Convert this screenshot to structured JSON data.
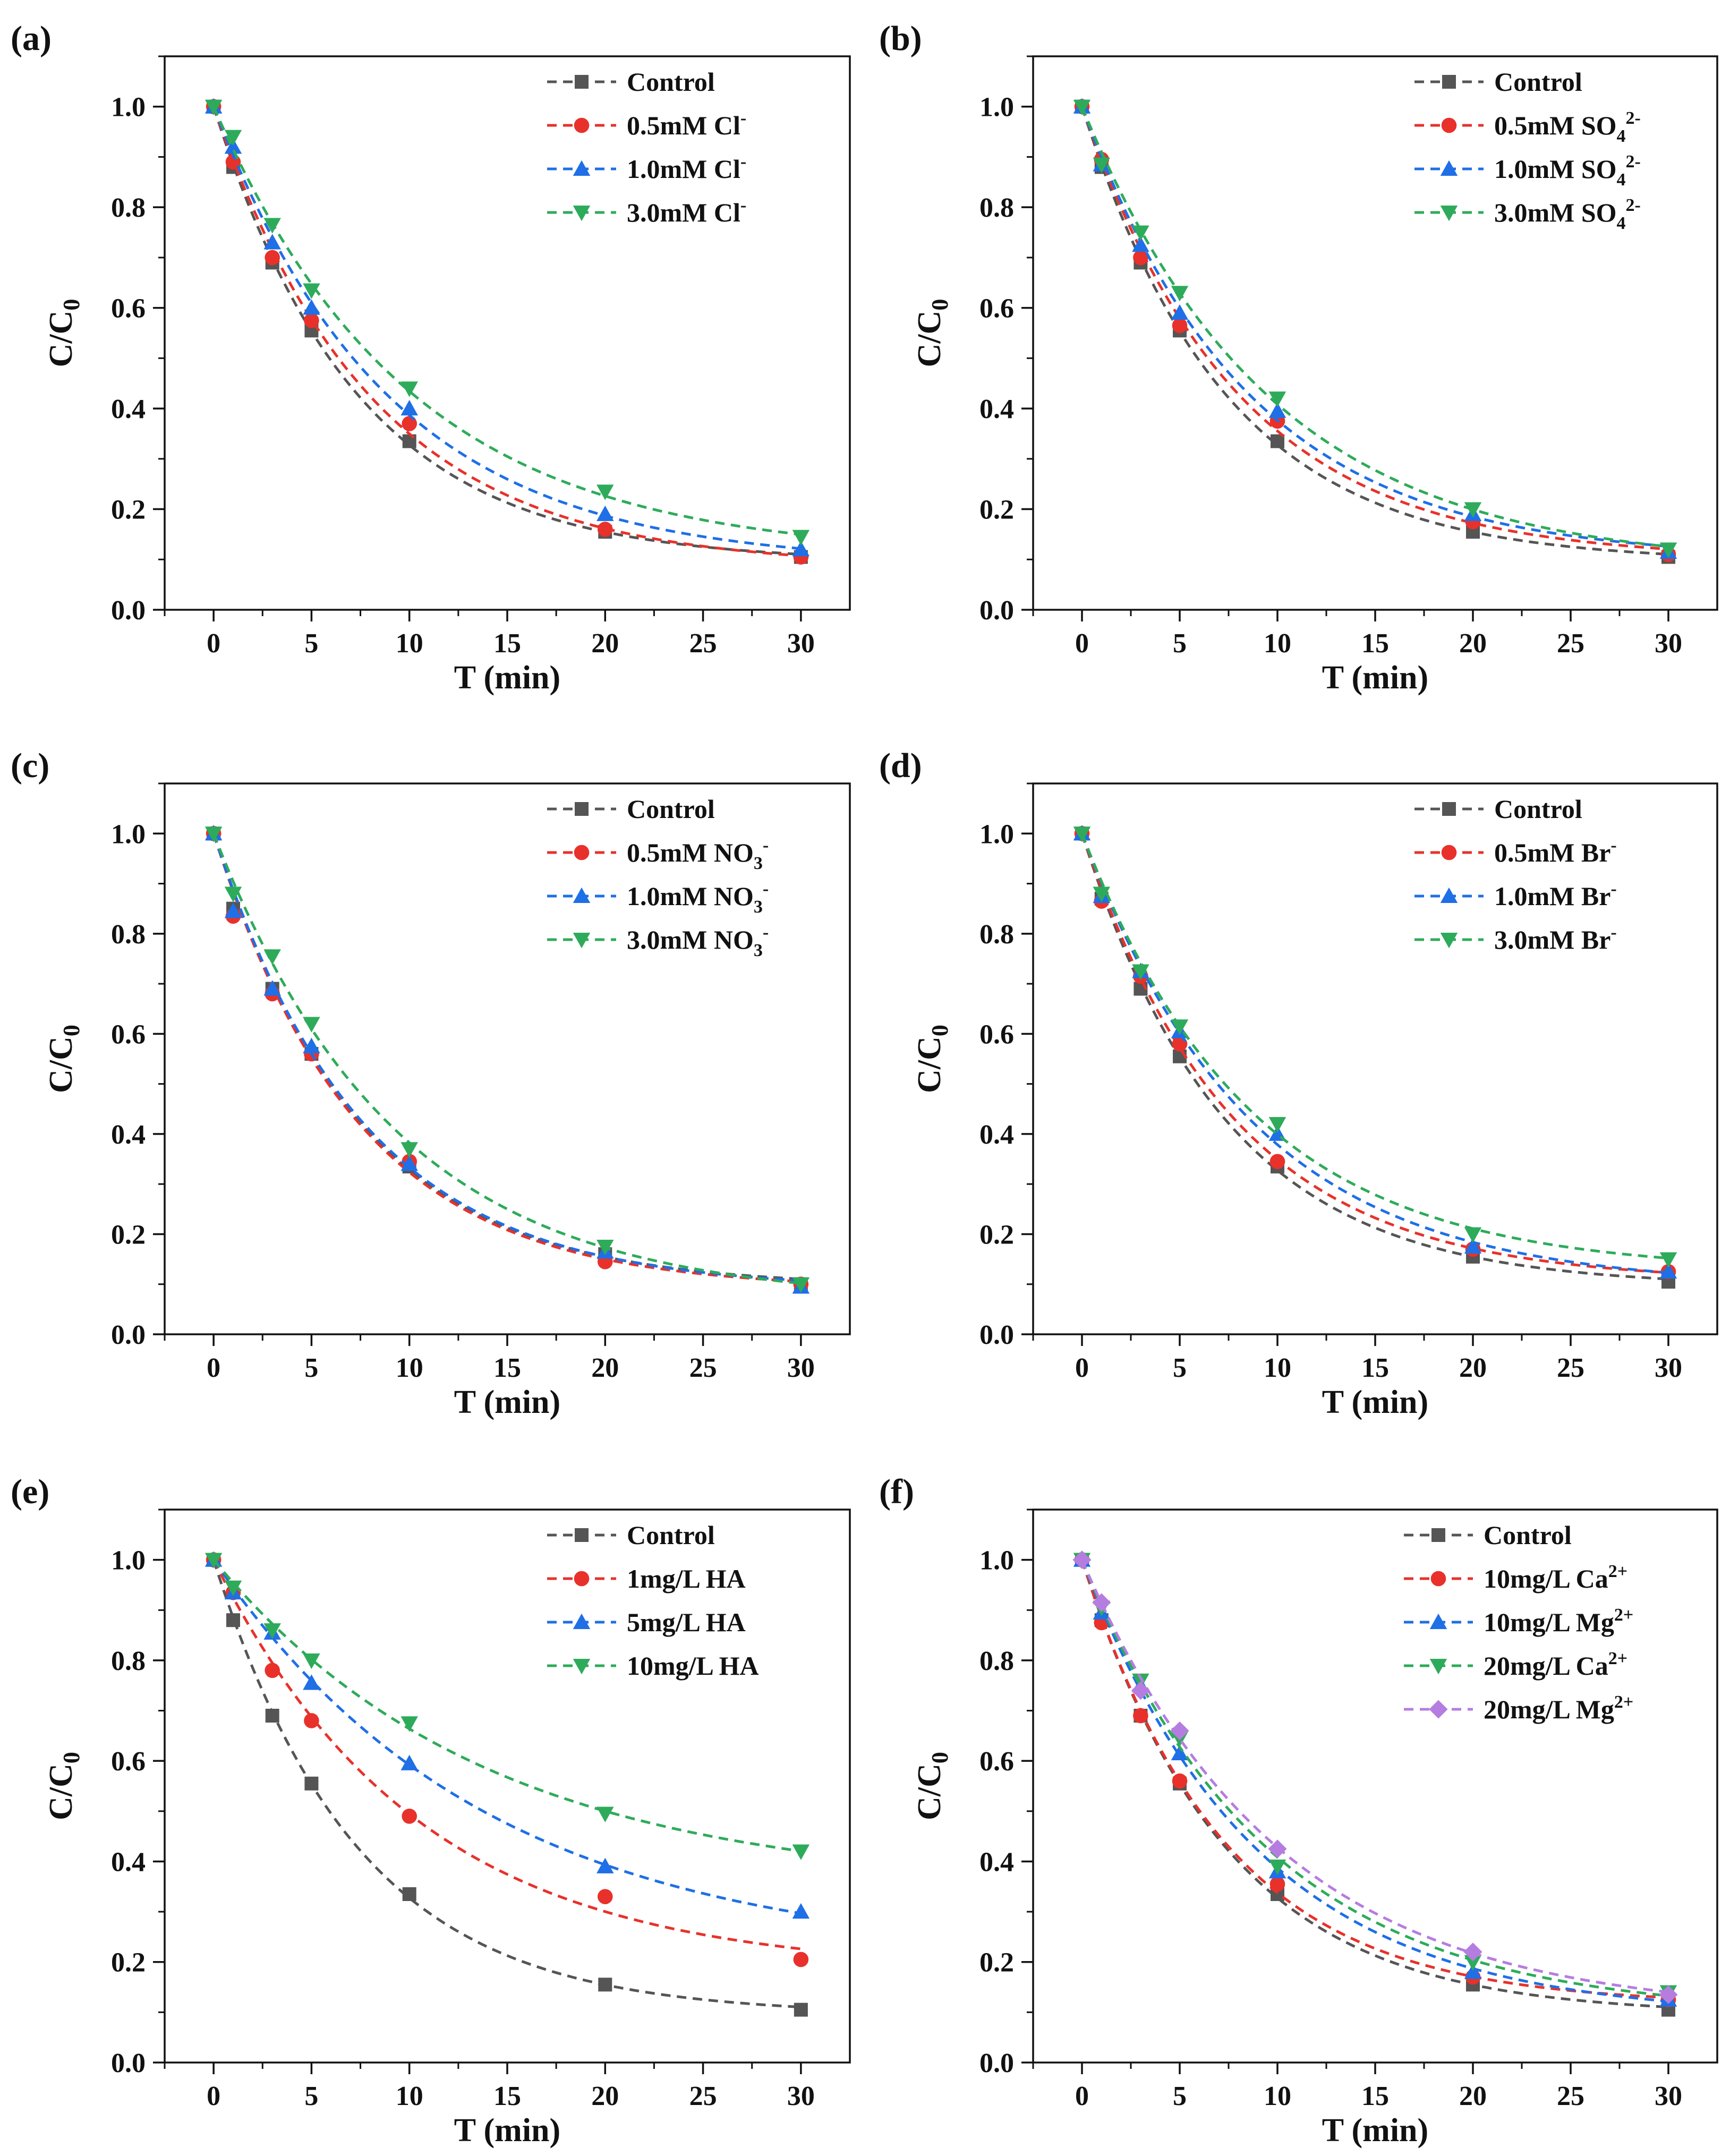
{
  "chart_data": [
    {
      "type": "scatter",
      "panel": "(a)",
      "xlabel": "T (min)",
      "ylabel": "C/C",
      "ylabel_sub": "0",
      "xlim": [
        -2.5,
        32.5
      ],
      "ylim": [
        0,
        1.1
      ],
      "xticks": [
        0,
        5,
        10,
        15,
        20,
        25,
        30
      ],
      "yticks": [
        0.0,
        0.2,
        0.4,
        0.6,
        0.8,
        1.0
      ],
      "xtick_labels": [
        "0",
        "5",
        "10",
        "15",
        "20",
        "25",
        "30"
      ],
      "ytick_labels": [
        "0.0",
        "0.2",
        "0.4",
        "0.6",
        "0.8",
        "1.0"
      ],
      "legend_position": "top-right",
      "x": [
        0,
        1,
        3,
        5,
        10,
        20,
        30
      ],
      "series": [
        {
          "name": "Control",
          "ion": "",
          "sub": "",
          "sup": "",
          "color": "#555555",
          "marker": "square",
          "values": [
            1.0,
            0.88,
            0.69,
            0.555,
            0.335,
            0.155,
            0.105
          ]
        },
        {
          "name": "0.5mM Cl",
          "ion": "0.5mM Cl",
          "sub": "",
          "sup": "-",
          "color": "#e8312b",
          "marker": "circle",
          "values": [
            1.0,
            0.89,
            0.7,
            0.575,
            0.37,
            0.16,
            0.105
          ]
        },
        {
          "name": "1.0mM Cl",
          "ion": "1.0mM Cl",
          "sub": "",
          "sup": "-",
          "color": "#1f6fe6",
          "marker": "triangle-up",
          "values": [
            1.0,
            0.92,
            0.73,
            0.6,
            0.4,
            0.19,
            0.12
          ]
        },
        {
          "name": "3.0mM Cl",
          "ion": "3.0mM Cl",
          "sub": "",
          "sup": "-",
          "color": "#2eab5a",
          "marker": "triangle-down",
          "values": [
            1.0,
            0.94,
            0.765,
            0.635,
            0.44,
            0.235,
            0.145
          ]
        }
      ]
    },
    {
      "type": "scatter",
      "panel": "(b)",
      "xlabel": "T (min)",
      "ylabel": "C/C",
      "ylabel_sub": "0",
      "xlim": [
        -2.5,
        32.5
      ],
      "ylim": [
        0,
        1.1
      ],
      "xticks": [
        0,
        5,
        10,
        15,
        20,
        25,
        30
      ],
      "yticks": [
        0.0,
        0.2,
        0.4,
        0.6,
        0.8,
        1.0
      ],
      "xtick_labels": [
        "0",
        "5",
        "10",
        "15",
        "20",
        "25",
        "30"
      ],
      "ytick_labels": [
        "0.0",
        "0.2",
        "0.4",
        "0.6",
        "0.8",
        "1.0"
      ],
      "legend_position": "top-right",
      "x": [
        0,
        1,
        3,
        5,
        10,
        20,
        30
      ],
      "series": [
        {
          "name": "Control",
          "ion": "",
          "sub": "",
          "sup": "",
          "color": "#555555",
          "marker": "square",
          "values": [
            1.0,
            0.88,
            0.69,
            0.555,
            0.335,
            0.155,
            0.105
          ]
        },
        {
          "name": "0.5mM SO4 2-",
          "ion": "0.5mM SO",
          "sub": "4",
          "sup": "2-",
          "color": "#e8312b",
          "marker": "circle",
          "values": [
            1.0,
            0.895,
            0.7,
            0.565,
            0.375,
            0.175,
            0.11
          ]
        },
        {
          "name": "1.0mM SO4 2-",
          "ion": "1.0mM SO",
          "sub": "4",
          "sup": "2-",
          "color": "#1f6fe6",
          "marker": "triangle-up",
          "values": [
            1.0,
            0.885,
            0.725,
            0.59,
            0.395,
            0.19,
            0.115
          ]
        },
        {
          "name": "3.0mM SO4 2-",
          "ion": "3.0mM SO",
          "sub": "4",
          "sup": "2-",
          "color": "#2eab5a",
          "marker": "triangle-down",
          "values": [
            1.0,
            0.885,
            0.75,
            0.63,
            0.42,
            0.2,
            0.12
          ]
        }
      ]
    },
    {
      "type": "scatter",
      "panel": "(c)",
      "xlabel": "T (min)",
      "ylabel": "C/C",
      "ylabel_sub": "0",
      "xlim": [
        -2.5,
        32.5
      ],
      "ylim": [
        0,
        1.1
      ],
      "xticks": [
        0,
        5,
        10,
        15,
        20,
        25,
        30
      ],
      "yticks": [
        0.0,
        0.2,
        0.4,
        0.6,
        0.8,
        1.0
      ],
      "xtick_labels": [
        "0",
        "5",
        "10",
        "15",
        "20",
        "25",
        "30"
      ],
      "ytick_labels": [
        "0.0",
        "0.2",
        "0.4",
        "0.6",
        "0.8",
        "1.0"
      ],
      "legend_position": "top-right",
      "x": [
        0,
        1,
        3,
        5,
        10,
        20,
        30
      ],
      "series": [
        {
          "name": "Control",
          "ion": "",
          "sub": "",
          "sup": "",
          "color": "#555555",
          "marker": "square",
          "values": [
            1.0,
            0.85,
            0.69,
            0.56,
            0.335,
            0.16,
            0.1
          ]
        },
        {
          "name": "0.5mM NO3 -",
          "ion": "0.5mM NO",
          "sub": "3",
          "sup": "-",
          "color": "#e8312b",
          "marker": "circle",
          "values": [
            1.0,
            0.835,
            0.68,
            0.56,
            0.345,
            0.145,
            0.1
          ]
        },
        {
          "name": "1.0mM NO3 -",
          "ion": "1.0mM NO",
          "sub": "3",
          "sup": "-",
          "color": "#1f6fe6",
          "marker": "triangle-up",
          "values": [
            1.0,
            0.845,
            0.69,
            0.575,
            0.34,
            0.165,
            0.095
          ]
        },
        {
          "name": "3.0mM NO3 -",
          "ion": "3.0mM NO",
          "sub": "3",
          "sup": "-",
          "color": "#2eab5a",
          "marker": "triangle-down",
          "values": [
            1.0,
            0.88,
            0.755,
            0.62,
            0.37,
            0.175,
            0.1
          ]
        }
      ]
    },
    {
      "type": "scatter",
      "panel": "(d)",
      "xlabel": "T (min)",
      "ylabel": "C/C",
      "ylabel_sub": "0",
      "xlim": [
        -2.5,
        32.5
      ],
      "ylim": [
        0,
        1.1
      ],
      "xticks": [
        0,
        5,
        10,
        15,
        20,
        25,
        30
      ],
      "yticks": [
        0.0,
        0.2,
        0.4,
        0.6,
        0.8,
        1.0
      ],
      "xtick_labels": [
        "0",
        "5",
        "10",
        "15",
        "20",
        "25",
        "30"
      ],
      "ytick_labels": [
        "0.0",
        "0.2",
        "0.4",
        "0.6",
        "0.8",
        "1.0"
      ],
      "legend_position": "top-right",
      "x": [
        0,
        1,
        3,
        5,
        10,
        20,
        30
      ],
      "series": [
        {
          "name": "Control",
          "ion": "",
          "sub": "",
          "sup": "",
          "color": "#555555",
          "marker": "square",
          "values": [
            1.0,
            0.87,
            0.69,
            0.555,
            0.335,
            0.155,
            0.105
          ]
        },
        {
          "name": "0.5mM Br",
          "ion": "0.5mM Br",
          "sub": "",
          "sup": "-",
          "color": "#e8312b",
          "marker": "circle",
          "values": [
            1.0,
            0.865,
            0.715,
            0.58,
            0.345,
            0.17,
            0.125
          ]
        },
        {
          "name": "1.0mM Br",
          "ion": "1.0mM Br",
          "sub": "",
          "sup": "-",
          "color": "#1f6fe6",
          "marker": "triangle-up",
          "values": [
            1.0,
            0.875,
            0.725,
            0.605,
            0.4,
            0.175,
            0.125
          ]
        },
        {
          "name": "3.0mM Br",
          "ion": "3.0mM Br",
          "sub": "",
          "sup": "-",
          "color": "#2eab5a",
          "marker": "triangle-down",
          "values": [
            1.0,
            0.88,
            0.725,
            0.615,
            0.42,
            0.2,
            0.15
          ]
        }
      ]
    },
    {
      "type": "scatter",
      "panel": "(e)",
      "xlabel": "T (min)",
      "ylabel": "C/C",
      "ylabel_sub": "0",
      "xlim": [
        -2.5,
        32.5
      ],
      "ylim": [
        0,
        1.1
      ],
      "xticks": [
        0,
        5,
        10,
        15,
        20,
        25,
        30
      ],
      "yticks": [
        0.0,
        0.2,
        0.4,
        0.6,
        0.8,
        1.0
      ],
      "xtick_labels": [
        "0",
        "5",
        "10",
        "15",
        "20",
        "25",
        "30"
      ],
      "ytick_labels": [
        "0.0",
        "0.2",
        "0.4",
        "0.6",
        "0.8",
        "1.0"
      ],
      "legend_position": "top-right",
      "x": [
        0,
        1,
        3,
        5,
        10,
        20,
        30
      ],
      "series": [
        {
          "name": "Control",
          "ion": "",
          "sub": "",
          "sup": "",
          "color": "#555555",
          "marker": "square",
          "values": [
            1.0,
            0.88,
            0.69,
            0.555,
            0.335,
            0.155,
            0.105
          ]
        },
        {
          "name": "1mg/L HA",
          "ion": "1mg/L HA",
          "sub": "",
          "sup": "",
          "color": "#e8312b",
          "marker": "circle",
          "values": [
            1.0,
            0.935,
            0.78,
            0.68,
            0.49,
            0.33,
            0.205
          ]
        },
        {
          "name": "5mg/L HA",
          "ion": "5mg/L HA",
          "sub": "",
          "sup": "",
          "color": "#1f6fe6",
          "marker": "triangle-up",
          "values": [
            1.0,
            0.935,
            0.855,
            0.755,
            0.595,
            0.39,
            0.3
          ]
        },
        {
          "name": "10mg/L HA",
          "ion": "10mg/L HA",
          "sub": "",
          "sup": "",
          "color": "#2eab5a",
          "marker": "triangle-down",
          "values": [
            1.0,
            0.945,
            0.86,
            0.8,
            0.675,
            0.495,
            0.42
          ]
        }
      ]
    },
    {
      "type": "scatter",
      "panel": "(f)",
      "xlabel": "T (min)",
      "ylabel": "C/C",
      "ylabel_sub": "0",
      "xlim": [
        -2.5,
        32.5
      ],
      "ylim": [
        0,
        1.1
      ],
      "xticks": [
        0,
        5,
        10,
        15,
        20,
        25,
        30
      ],
      "yticks": [
        0.0,
        0.2,
        0.4,
        0.6,
        0.8,
        1.0
      ],
      "xtick_labels": [
        "0",
        "5",
        "10",
        "15",
        "20",
        "25",
        "30"
      ],
      "ytick_labels": [
        "0.0",
        "0.2",
        "0.4",
        "0.6",
        "0.8",
        "1.0"
      ],
      "legend_position": "top-right",
      "x": [
        0,
        1,
        3,
        5,
        10,
        20,
        30
      ],
      "series": [
        {
          "name": "Control",
          "ion": "",
          "sub": "",
          "sup": "",
          "color": "#555555",
          "marker": "square",
          "values": [
            1.0,
            0.88,
            0.69,
            0.555,
            0.335,
            0.155,
            0.105
          ]
        },
        {
          "name": "10mg/L Ca2+",
          "ion": "10mg/L Ca",
          "sub": "",
          "sup": "2+",
          "color": "#e8312b",
          "marker": "circle",
          "values": [
            1.0,
            0.875,
            0.69,
            0.56,
            0.355,
            0.17,
            0.125
          ]
        },
        {
          "name": "10mg/L Mg2+",
          "ion": "10mg/L Mg",
          "sub": "",
          "sup": "2+",
          "color": "#1f6fe6",
          "marker": "triangle-up",
          "values": [
            1.0,
            0.895,
            0.75,
            0.615,
            0.38,
            0.18,
            0.125
          ]
        },
        {
          "name": "20mg/L Ca2+",
          "ion": "20mg/L Ca",
          "sub": "",
          "sup": "2+",
          "color": "#2eab5a",
          "marker": "triangle-down",
          "values": [
            1.0,
            0.905,
            0.76,
            0.645,
            0.39,
            0.2,
            0.14
          ]
        },
        {
          "name": "20mg/L Mg2+",
          "ion": "20mg/L Mg",
          "sub": "",
          "sup": "2+",
          "color": "#b57de0",
          "marker": "diamond",
          "values": [
            1.0,
            0.915,
            0.74,
            0.66,
            0.425,
            0.22,
            0.135
          ]
        }
      ]
    }
  ]
}
